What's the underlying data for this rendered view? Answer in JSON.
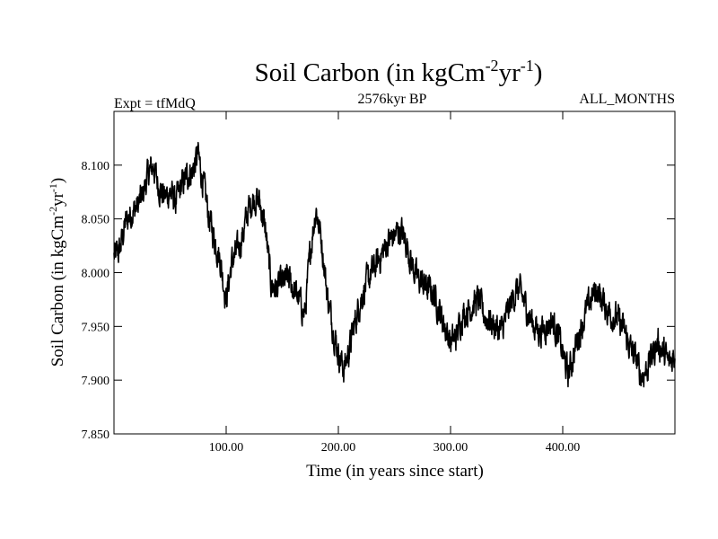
{
  "chart_data": {
    "type": "line",
    "title_main": "Soil Carbon (in kgCm",
    "title_sup1": "-2",
    "title_mid": "yr",
    "title_sup2": "-1",
    "title_end": ")",
    "subtitle_left": "Expt = tfMdQ",
    "subtitle_center": "2576kyr BP",
    "subtitle_right": "ALL_MONTHS",
    "xlabel": "Time (in years since start)",
    "ylabel_main": "Soil Carbon (in kgCm",
    "ylabel_sup1": "-2",
    "ylabel_mid": "yr",
    "ylabel_sup2": "-1",
    "ylabel_end": ")",
    "xlim": [
      0,
      500
    ],
    "ylim": [
      7.85,
      8.15
    ],
    "x_ticks": [
      {
        "value": 100,
        "label": "100.00"
      },
      {
        "value": 200,
        "label": "200.00"
      },
      {
        "value": 300,
        "label": "300.00"
      },
      {
        "value": 400,
        "label": "400.00"
      }
    ],
    "y_ticks": [
      {
        "value": 7.85,
        "label": "7.850"
      },
      {
        "value": 7.9,
        "label": "7.900"
      },
      {
        "value": 7.95,
        "label": "7.950"
      },
      {
        "value": 8.0,
        "label": "8.000"
      },
      {
        "value": 8.05,
        "label": "8.050"
      },
      {
        "value": 8.1,
        "label": "8.100"
      }
    ],
    "series": [
      {
        "name": "Soil Carbon",
        "color": "#000000",
        "x": [
          0,
          5,
          10,
          15,
          20,
          25,
          30,
          35,
          40,
          45,
          50,
          55,
          60,
          65,
          70,
          75,
          80,
          85,
          90,
          95,
          100,
          105,
          110,
          115,
          120,
          125,
          130,
          135,
          140,
          145,
          150,
          155,
          160,
          165,
          170,
          175,
          180,
          185,
          190,
          195,
          200,
          205,
          210,
          215,
          220,
          225,
          230,
          235,
          240,
          245,
          250,
          255,
          260,
          265,
          270,
          275,
          280,
          285,
          290,
          295,
          300,
          305,
          310,
          315,
          320,
          325,
          330,
          335,
          340,
          345,
          350,
          355,
          360,
          365,
          370,
          375,
          380,
          385,
          390,
          395,
          400,
          405,
          410,
          415,
          420,
          425,
          430,
          435,
          440,
          445,
          450,
          455,
          460,
          465,
          470,
          475,
          480,
          485,
          490,
          495,
          500
        ],
        "values": [
          8.015,
          8.02,
          8.045,
          8.055,
          8.06,
          8.07,
          8.09,
          8.1,
          8.08,
          8.07,
          8.075,
          8.065,
          8.08,
          8.09,
          8.095,
          8.11,
          8.08,
          8.05,
          8.03,
          8.01,
          7.975,
          8.01,
          8.02,
          8.035,
          8.06,
          8.07,
          8.065,
          8.04,
          7.99,
          7.985,
          7.99,
          7.995,
          7.985,
          7.975,
          7.96,
          8.02,
          8.06,
          8.03,
          7.98,
          7.95,
          7.925,
          7.91,
          7.93,
          7.955,
          7.975,
          7.99,
          8.0,
          8.01,
          8.02,
          8.03,
          8.035,
          8.04,
          8.03,
          8.01,
          7.995,
          7.99,
          7.985,
          7.98,
          7.965,
          7.95,
          7.935,
          7.94,
          7.96,
          7.965,
          7.97,
          7.975,
          7.96,
          7.955,
          7.95,
          7.945,
          7.96,
          7.975,
          7.985,
          7.975,
          7.96,
          7.95,
          7.945,
          7.95,
          7.955,
          7.945,
          7.925,
          7.905,
          7.925,
          7.945,
          7.96,
          7.975,
          7.985,
          7.975,
          7.965,
          7.96,
          7.955,
          7.945,
          7.93,
          7.92,
          7.905,
          7.91,
          7.925,
          7.935,
          7.925,
          7.915,
          7.925
        ]
      }
    ]
  }
}
